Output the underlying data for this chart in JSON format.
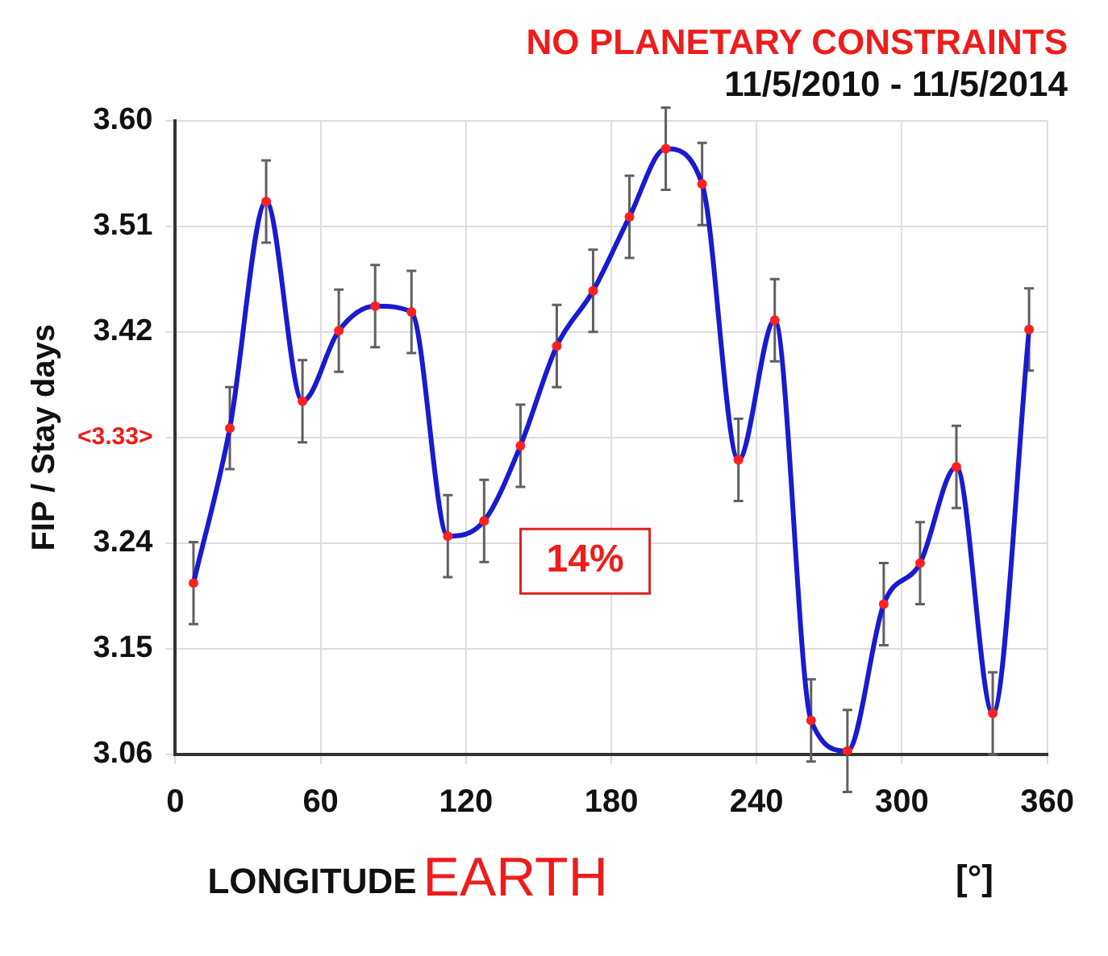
{
  "chart_data": {
    "type": "line",
    "title": "NO PLANETARY CONSTRAINTS",
    "subtitle": "11/5/2010 - 11/5/2014",
    "xlabel": "LONGITUDE",
    "ylabel": "FIP / Stay days",
    "annotations": [
      "14%",
      "EARTH",
      "[°]"
    ],
    "x": [
      7.5,
      22.5,
      37.5,
      52.5,
      67.5,
      82.5,
      97.5,
      112.5,
      127.5,
      142.5,
      157.5,
      172.5,
      187.5,
      202.5,
      217.5,
      232.5,
      247.5,
      262.5,
      277.5,
      292.5,
      307.5,
      322.5,
      337.5,
      352.5
    ],
    "series": [
      {
        "color": "#1a1ad0",
        "values": [
          3.206,
          3.338,
          3.531,
          3.361,
          3.421,
          3.442,
          3.437,
          3.246,
          3.259,
          3.323,
          3.408,
          3.455,
          3.518,
          3.576,
          3.546,
          3.311,
          3.43,
          3.089,
          3.063,
          3.188,
          3.223,
          3.305,
          3.095,
          3.422
        ],
        "errors": [
          0.035,
          0.035,
          0.035,
          0.035,
          0.035,
          0.035,
          0.035,
          0.035,
          0.035,
          0.035,
          0.035,
          0.035,
          0.035,
          0.035,
          0.035,
          0.035,
          0.035,
          0.035,
          0.035,
          0.035,
          0.035,
          0.035,
          0.035,
          0.035
        ]
      }
    ],
    "xlim": [
      0,
      360
    ],
    "xticks": [
      0,
      60,
      120,
      180,
      240,
      300,
      360
    ],
    "ylim": [
      3.06,
      3.6
    ],
    "yticks": [
      3.06,
      3.15,
      3.24,
      {
        "value": 3.33,
        "label": "<3.33>"
      },
      3.42,
      3.51,
      {
        "value": 3.6,
        "label": "3.60"
      }
    ],
    "grid": true,
    "marker": "circle",
    "legend": false
  }
}
